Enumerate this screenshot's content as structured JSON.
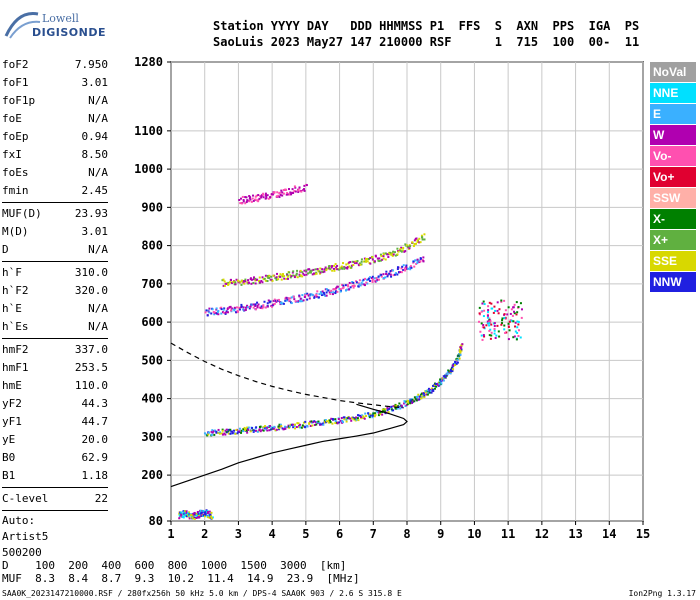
{
  "logo": {
    "top": "Lowell",
    "bottom": "DIGISONDE"
  },
  "header": {
    "line1": "Station YYYY DAY   DDD HHMMSS P1  FFS  S  AXN  PPS  IGA  PS",
    "line2": "SaoLuis 2023 May27 147 210000 RSF      1  715  100  00-  11"
  },
  "params": [
    {
      "label": "foF2",
      "value": "7.950"
    },
    {
      "label": "foF1",
      "value": "3.01"
    },
    {
      "label": "foF1p",
      "value": "N/A"
    },
    {
      "label": "foE",
      "value": "N/A"
    },
    {
      "label": "foEp",
      "value": "0.94"
    },
    {
      "label": "fxI",
      "value": "8.50"
    },
    {
      "label": "foEs",
      "value": "N/A"
    },
    {
      "label": "fmin",
      "value": "2.45"
    },
    {
      "sep": true
    },
    {
      "label": "MUF(D)",
      "value": "23.93"
    },
    {
      "label": "M(D)",
      "value": "3.01"
    },
    {
      "label": "D",
      "value": "N/A"
    },
    {
      "sep": true
    },
    {
      "label": "h`F",
      "value": "310.0"
    },
    {
      "label": "h`F2",
      "value": "320.0"
    },
    {
      "label": "h`E",
      "value": "N/A"
    },
    {
      "label": "h`Es",
      "value": "N/A"
    },
    {
      "sep": true
    },
    {
      "label": "hmF2",
      "value": "337.0"
    },
    {
      "label": "hmF1",
      "value": "253.5"
    },
    {
      "label": "hmE",
      "value": "110.0"
    },
    {
      "label": "yF2",
      "value": "44.3"
    },
    {
      "label": "yF1",
      "value": "44.7"
    },
    {
      "label": "yE",
      "value": "20.0"
    },
    {
      "label": "B0",
      "value": "62.9"
    },
    {
      "label": "B1",
      "value": "1.18"
    },
    {
      "sep": true
    },
    {
      "label": "C-level",
      "value": "22"
    },
    {
      "sep": true
    },
    {
      "text": "Auto:"
    },
    {
      "text": "Artist5"
    },
    {
      "text": "500200"
    }
  ],
  "legend": [
    {
      "label": "NoVal",
      "color": "#a0a0a0"
    },
    {
      "label": "NNE",
      "color": "#00e0ff"
    },
    {
      "label": "E",
      "color": "#3ab0ff"
    },
    {
      "label": "W",
      "color": "#b000b0"
    },
    {
      "label": "Vo-",
      "color": "#ff50b0"
    },
    {
      "label": "Vo+",
      "color": "#e00030"
    },
    {
      "label": "SSW",
      "color": "#ffb0a8"
    },
    {
      "label": "X-",
      "color": "#008000"
    },
    {
      "label": "X+",
      "color": "#60b040"
    },
    {
      "label": "SSE",
      "color": "#d8d800"
    },
    {
      "label": "NNW",
      "color": "#2020e0"
    }
  ],
  "muf_table": {
    "row1": "D    100  200  400  600  800  1000  1500  3000  [km]",
    "row2": "MUF  8.3  8.4  8.7  9.3  10.2  11.4  14.9  23.9  [MHz]"
  },
  "footer": "SAA0K_2023147210000.RSF / 280fx256h 50 kHz 5.0 km / DPS-4 SAA0K 903 / 2.6 S 315.8 E",
  "version": "Ion2Png 1.3.17",
  "chart_data": {
    "type": "scatter",
    "x_ticks": [
      1,
      2,
      3,
      4,
      5,
      6,
      7,
      8,
      9,
      10,
      11,
      12,
      13,
      14,
      15
    ],
    "y_ticks": [
      80,
      200,
      300,
      400,
      500,
      600,
      700,
      800,
      900,
      1000,
      1100,
      1280
    ],
    "xlim": [
      1,
      15
    ],
    "ylim": [
      80,
      1280
    ],
    "grid": true,
    "legend_position": "right",
    "profile": {
      "freq": [
        1.0,
        1.5,
        2.0,
        2.5,
        3.0,
        3.5,
        4.0,
        4.5,
        5.0,
        5.5,
        6.0,
        6.5,
        7.0,
        7.5,
        7.9,
        8.0,
        7.9,
        7.5,
        7.0,
        6.5
      ],
      "height": [
        170,
        185,
        200,
        215,
        232,
        245,
        258,
        268,
        278,
        288,
        295,
        302,
        310,
        322,
        332,
        340,
        348,
        360,
        372,
        385
      ]
    },
    "topside": {
      "freq": [
        1.0,
        1.5,
        2.0,
        2.5,
        3.0,
        3.5,
        4.0,
        4.5,
        5.0,
        5.5,
        6.0,
        6.5,
        7.0,
        7.5,
        7.9
      ],
      "height": [
        545,
        520,
        497,
        477,
        460,
        445,
        432,
        421,
        411,
        403,
        395,
        389,
        384,
        379,
        376
      ]
    },
    "traces": [
      {
        "name": "o_F",
        "color": "#2020e0",
        "alt": [
          "#b000b0",
          "#3ab0ff",
          "#d8d800",
          "#008000"
        ],
        "freq": [
          2.0,
          2.5,
          3.0,
          3.5,
          4.0,
          4.5,
          5.0,
          5.5,
          6.0,
          6.5,
          7.0,
          7.5,
          8.0,
          8.3,
          8.6,
          8.9,
          9.1,
          9.3,
          9.5,
          9.6
        ],
        "height": [
          312,
          315,
          318,
          322,
          326,
          330,
          335,
          340,
          346,
          352,
          362,
          375,
          392,
          405,
          420,
          440,
          460,
          480,
          510,
          545
        ]
      },
      {
        "name": "o_2F",
        "color": "#b000b0",
        "alt": [
          "#2020e0",
          "#ff50b0",
          "#3ab0ff"
        ],
        "freq": [
          2.0,
          2.5,
          3.0,
          3.5,
          4.0,
          4.5,
          5.0,
          5.5,
          6.0,
          6.5,
          7.0,
          7.5,
          8.0,
          8.5
        ],
        "height": [
          628,
          632,
          638,
          645,
          652,
          660,
          668,
          678,
          690,
          702,
          715,
          730,
          748,
          770
        ]
      },
      {
        "name": "x_2F",
        "color": "#d8d800",
        "alt": [
          "#60b040",
          "#b000b0"
        ],
        "freq": [
          2.5,
          3.0,
          3.5,
          4.0,
          4.5,
          5.0,
          5.5,
          6.0,
          6.5,
          7.0,
          7.5,
          8.0,
          8.5
        ],
        "height": [
          705,
          708,
          712,
          718,
          725,
          732,
          740,
          748,
          756,
          766,
          780,
          800,
          828
        ]
      },
      {
        "name": "o_3F",
        "color": "#b000b0",
        "alt": [
          "#ff50b0"
        ],
        "freq": [
          3.0,
          3.5,
          4.0,
          4.5,
          5.0
        ],
        "height": [
          920,
          926,
          935,
          945,
          955
        ]
      },
      {
        "name": "Es",
        "color": "#2020e0",
        "alt": [
          "#b000b0",
          "#d8d800",
          "#00e0ff"
        ],
        "freq": [
          1.2,
          1.4,
          1.6,
          1.8,
          2.0,
          2.2
        ],
        "height": [
          98,
          102,
          95,
          100,
          104,
          96
        ]
      },
      {
        "name": "spread",
        "color": "#b000b0",
        "alt": [
          "#ff50b0",
          "#00e0ff",
          "#e00030",
          "#008000"
        ],
        "freq": [
          10.2,
          10.4,
          10.6,
          10.8,
          11.0,
          11.2,
          10.5,
          10.9
        ],
        "height": [
          590,
          610,
          570,
          620,
          600,
          585,
          640,
          560
        ]
      }
    ]
  }
}
